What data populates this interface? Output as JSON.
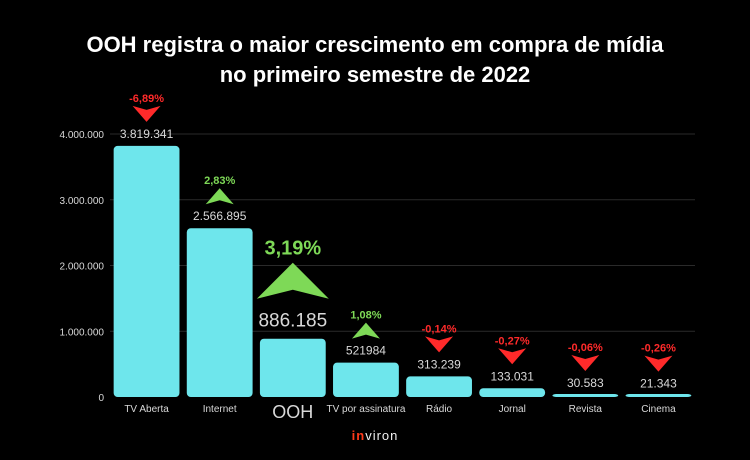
{
  "title_lines": [
    "OOH registra o maior crescimento em compra de mídia",
    "no primeiro semestre de 2022"
  ],
  "logo": {
    "part1": "in",
    "part2": "viron"
  },
  "colors": {
    "bar": "#6ee6ec",
    "up": "#7ed957",
    "down": "#ff2a2a",
    "text": "#d9d9d9",
    "grid": "#2a2a2a"
  },
  "chart_data": {
    "type": "bar",
    "categories": [
      "TV Aberta",
      "Internet",
      "OOH",
      "TV por assinatura",
      "Rádio",
      "Jornal",
      "Revista",
      "Cinema"
    ],
    "values": [
      3819341,
      2566895,
      886185,
      521984,
      313239,
      133031,
      30583,
      21343
    ],
    "value_labels": [
      "3.819.341",
      "2.566.895",
      "886.185",
      "521984",
      "313.239",
      "133.031",
      "30.583",
      "21.343"
    ],
    "changes": [
      "-6,89%",
      "2,83%",
      "3,19%",
      "1,08%",
      "-0,14%",
      "-0,27%",
      "-0,06%",
      "-0,26%"
    ],
    "directions": [
      "down",
      "up",
      "up",
      "up",
      "down",
      "down",
      "down",
      "down"
    ],
    "highlight": "OOH",
    "y_ticks": [
      0,
      1000000,
      2000000,
      3000000,
      4000000
    ],
    "y_tick_labels": [
      "0",
      "1.000.000",
      "2.000.000",
      "3.000.000",
      "4.000.000"
    ],
    "ylim": [
      0,
      4000000
    ],
    "grid": true
  }
}
